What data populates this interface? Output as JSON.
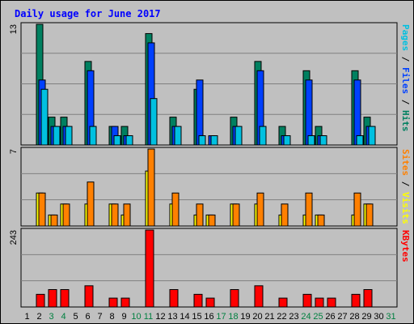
{
  "chart_data": {
    "type": "bar",
    "title": "Daily usage for June 2017",
    "days": [
      "1",
      "2",
      "3",
      "4",
      "5",
      "6",
      "7",
      "8",
      "9",
      "10",
      "11",
      "12",
      "13",
      "14",
      "15",
      "16",
      "17",
      "18",
      "19",
      "20",
      "21",
      "22",
      "23",
      "24",
      "25",
      "26",
      "27",
      "28",
      "29",
      "30",
      "31"
    ],
    "weekend_days": [
      "3",
      "4",
      "10",
      "11",
      "17",
      "18",
      "24",
      "25",
      "31"
    ],
    "panels": [
      {
        "id": "hits",
        "max_label": "13",
        "ymax": 13,
        "legend": [
          {
            "text": "Pages",
            "color": "#00c0e0"
          },
          {
            "text": " / ",
            "color": "#000000"
          },
          {
            "text": "Files",
            "color": "#0040ff"
          },
          {
            "text": " / ",
            "color": "#000000"
          },
          {
            "text": "Hits",
            "color": "#008060"
          }
        ],
        "series": [
          {
            "name": "Hits",
            "color": "#008060",
            "values": [
              0,
              13,
              3,
              3,
              0,
              9,
              0,
              2,
              2,
              0,
              12,
              0,
              3,
              0,
              6,
              0,
              0,
              3,
              0,
              9,
              0,
              2,
              0,
              8,
              2,
              0,
              0,
              8,
              3,
              0,
              0
            ]
          },
          {
            "name": "Files",
            "color": "#0040ff",
            "values": [
              0,
              7,
              2,
              2,
              0,
              8,
              0,
              2,
              1,
              0,
              11,
              0,
              2,
              0,
              7,
              1,
              0,
              2,
              0,
              8,
              0,
              1,
              0,
              7,
              1,
              0,
              0,
              7,
              2,
              0,
              0
            ]
          },
          {
            "name": "Pages",
            "color": "#00c0e0",
            "values": [
              0,
              6,
              2,
              2,
              0,
              2,
              0,
              1,
              1,
              0,
              5,
              0,
              2,
              0,
              1,
              1,
              0,
              2,
              0,
              2,
              0,
              1,
              0,
              1,
              1,
              0,
              0,
              1,
              2,
              0,
              0
            ]
          }
        ]
      },
      {
        "id": "visits",
        "max_label": "7",
        "ymax": 7,
        "legend": [
          {
            "text": "Sites",
            "color": "#ff8000"
          },
          {
            "text": " / ",
            "color": "#000000"
          },
          {
            "text": "Visits",
            "color": "#ffff00"
          }
        ],
        "series": [
          {
            "name": "Visits",
            "color": "#ffff00",
            "values": [
              0,
              3,
              1,
              2,
              0,
              2,
              0,
              2,
              1,
              0,
              5,
              0,
              2,
              0,
              1,
              1,
              0,
              2,
              0,
              2,
              0,
              1,
              0,
              1,
              1,
              0,
              0,
              1,
              2,
              0,
              0
            ]
          },
          {
            "name": "Sites",
            "color": "#ff8000",
            "values": [
              0,
              3,
              1,
              2,
              0,
              4,
              0,
              2,
              2,
              0,
              7,
              0,
              3,
              0,
              2,
              1,
              0,
              2,
              0,
              3,
              0,
              2,
              0,
              3,
              1,
              0,
              0,
              3,
              2,
              0,
              0
            ]
          }
        ]
      },
      {
        "id": "kbytes",
        "max_label": "243",
        "ymax": 243,
        "legend": [
          {
            "text": "KBytes",
            "color": "#ff0000"
          }
        ],
        "series": [
          {
            "name": "KBytes",
            "color": "#ff0000",
            "values": [
              0,
              40,
              55,
              55,
              0,
              67,
              0,
              28,
              28,
              0,
              243,
              0,
              55,
              0,
              40,
              28,
              0,
              55,
              0,
              67,
              0,
              28,
              0,
              40,
              28,
              28,
              0,
              40,
              55,
              0,
              0
            ]
          }
        ]
      }
    ],
    "colors": {
      "background": "#c0c0c0",
      "title": "#0000ff",
      "grid": "#808080",
      "weekday_label": "#000000",
      "weekend_label": "#008040"
    }
  }
}
